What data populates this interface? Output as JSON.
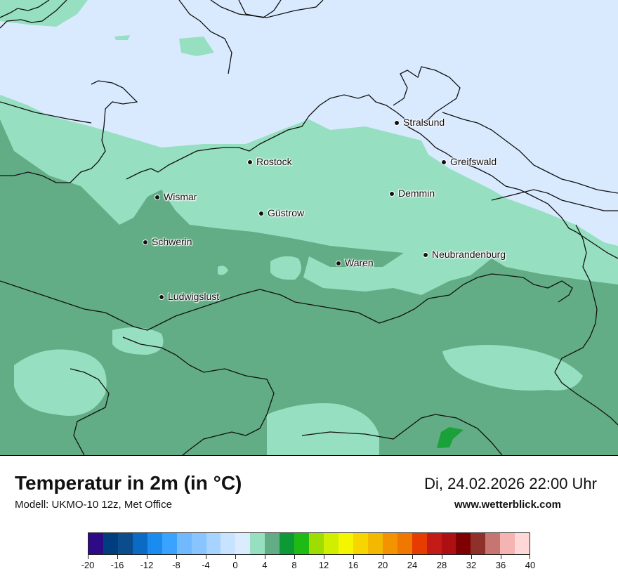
{
  "map": {
    "water_color": "#d9eaff",
    "land_warm_color": "#62ad85",
    "land_cool_color": "#96dfc0",
    "border_color": "#111111",
    "hotspot_color": "#1aa13a",
    "cities": [
      {
        "name": "Stralsund"
      },
      {
        "name": "Rostock"
      },
      {
        "name": "Greifswald"
      },
      {
        "name": "Wismar"
      },
      {
        "name": "Demmin"
      },
      {
        "name": "Güstrow"
      },
      {
        "name": "Schwerin"
      },
      {
        "name": "Neubrandenburg"
      },
      {
        "name": "Waren"
      },
      {
        "name": "Ludwigslust"
      }
    ]
  },
  "footer": {
    "title": "Temperatur in 2m (in °C)",
    "model": "Modell: UKMO-10 12z, Met Office",
    "datetime": "Di, 24.02.2026 22:00 Uhr",
    "site": "www.wetterblick.com"
  },
  "legend": {
    "colors": [
      "#2e0b86",
      "#003d7f",
      "#0a4c8c",
      "#0a6ac4",
      "#1a8cf0",
      "#3aa2ff",
      "#70b9ff",
      "#88c4ff",
      "#a6d3ff",
      "#c8e3ff",
      "#dbecff",
      "#96dfc0",
      "#62ad85",
      "#0d9a36",
      "#1fbb14",
      "#9fdd00",
      "#d0ef00",
      "#f5f500",
      "#f6d500",
      "#f2b900",
      "#f39300",
      "#f07700",
      "#e63c00",
      "#c41b16",
      "#ad0f12",
      "#7e0001",
      "#8f302b",
      "#c77571",
      "#f4b4b2",
      "#ffd7d6"
    ],
    "tick_labels": [
      "-20",
      "-16",
      "-12",
      "-8",
      "-4",
      "0",
      "4",
      "8",
      "12",
      "16",
      "20",
      "24",
      "28",
      "32",
      "36",
      "40"
    ]
  }
}
